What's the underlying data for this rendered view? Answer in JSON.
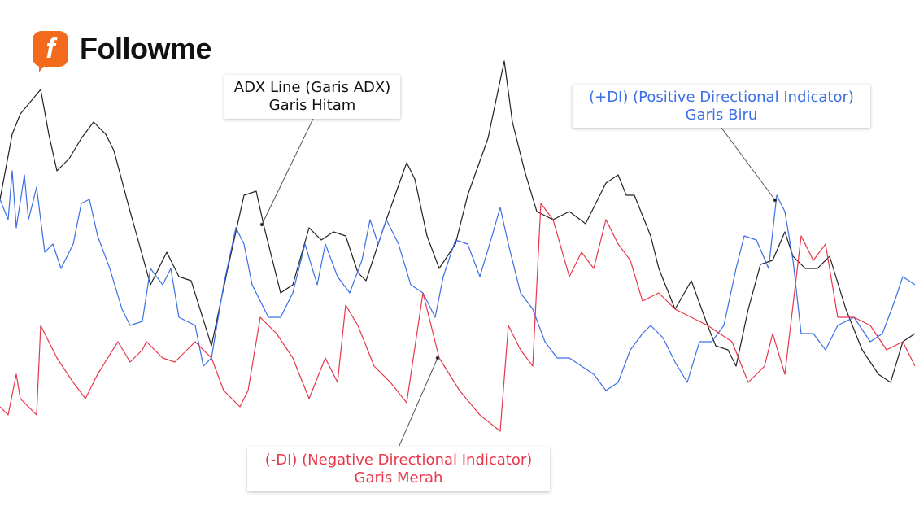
{
  "brand": {
    "name": "Followme",
    "logo_letter": "f",
    "color": "#f26b1d"
  },
  "annotations": {
    "adx": {
      "line1": "ADX Line (Garis ADX)",
      "line2": "Garis Hitam",
      "color": "#111111"
    },
    "plus_di": {
      "line1": "(+DI) (Positive Directional Indicator)",
      "line2": "Garis Biru",
      "color": "#3b6fe6"
    },
    "minus_di": {
      "line1": "(-DI) (Negative Directional Indicator)",
      "line2": "Garis Merah",
      "color": "#e8364a"
    }
  },
  "chart_data": {
    "type": "line",
    "title": "",
    "xlabel": "",
    "ylabel": "",
    "grid": false,
    "axes_visible": false,
    "series": [
      {
        "key": "adx",
        "color": "#222222",
        "x": [
          0,
          3,
          5,
          10,
          12,
          14,
          17,
          20,
          23,
          26,
          28,
          32,
          37,
          41,
          44,
          47,
          52,
          56,
          60,
          63,
          65,
          69,
          72,
          76,
          79,
          82,
          85,
          88,
          90,
          95,
          100,
          102,
          105,
          108,
          112,
          115,
          120,
          124,
          126,
          129,
          132,
          136,
          140,
          144,
          149,
          152,
          154,
          156,
          160,
          162,
          166,
          170,
          174,
          176,
          179,
          181,
          184,
          187,
          190,
          193,
          195,
          198,
          201,
          204,
          208,
          212,
          216,
          219,
          222,
          225
        ],
        "y": [
          63,
          79,
          84,
          90,
          79,
          70,
          73,
          78,
          82,
          79,
          75,
          60,
          42,
          50,
          44,
          43,
          27,
          46,
          64,
          65,
          56,
          40,
          42,
          56,
          53,
          55,
          54,
          45,
          43,
          58,
          72,
          68,
          54,
          46,
          52,
          64,
          78,
          97,
          82,
          70,
          60,
          58,
          60,
          57,
          67,
          69,
          64,
          64,
          54,
          46,
          36,
          43,
          32,
          27,
          26,
          22,
          36,
          47,
          48,
          55,
          49,
          46,
          46,
          49,
          36,
          26,
          20,
          18,
          28,
          30
        ]
      },
      {
        "key": "plus_di",
        "color": "#3b6fe6",
        "x": [
          0,
          2,
          3,
          4,
          6,
          7,
          9,
          11,
          13,
          15,
          18,
          20,
          22,
          24,
          27,
          30,
          32,
          35,
          37,
          40,
          42,
          44,
          48,
          50,
          52,
          55,
          58,
          60,
          62,
          66,
          69,
          72,
          75,
          78,
          80,
          83,
          86,
          89,
          91,
          93,
          95,
          98,
          101,
          104,
          107,
          109,
          112,
          115,
          118,
          121,
          123,
          125,
          128,
          131,
          134,
          137,
          140,
          143,
          146,
          149,
          152,
          155,
          158,
          160,
          163,
          166,
          169,
          172,
          175,
          178,
          181,
          183,
          186,
          189,
          191,
          193,
          195,
          197,
          200,
          203,
          206,
          210,
          214,
          217,
          220,
          222,
          225
        ],
        "y": [
          63,
          58,
          70,
          56,
          69,
          58,
          66,
          50,
          52,
          46,
          52,
          62,
          63,
          54,
          46,
          36,
          32,
          33,
          46,
          42,
          46,
          34,
          32,
          22,
          24,
          42,
          56,
          52,
          42,
          34,
          34,
          40,
          52,
          42,
          52,
          44,
          40,
          48,
          58,
          52,
          58,
          52,
          42,
          40,
          34,
          44,
          53,
          52,
          44,
          54,
          61,
          52,
          40,
          36,
          28,
          24,
          24,
          22,
          20,
          16,
          18,
          26,
          30,
          32,
          29,
          23,
          18,
          28,
          28,
          32,
          46,
          54,
          53,
          46,
          64,
          60,
          48,
          30,
          30,
          26,
          32,
          34,
          28,
          30,
          38,
          44,
          42
        ]
      },
      {
        "key": "minus_di",
        "color": "#e8364a",
        "x": [
          0,
          2,
          4,
          5,
          9,
          10,
          14,
          18,
          21,
          24,
          29,
          32,
          35,
          36,
          40,
          43,
          48,
          52,
          55,
          59,
          61,
          64,
          68,
          72,
          76,
          80,
          83,
          85,
          88,
          92,
          96,
          100,
          104,
          108,
          113,
          118,
          123,
          125,
          128,
          131,
          133,
          136,
          140,
          143,
          146,
          149,
          152,
          155,
          158,
          162,
          166,
          170,
          174,
          177,
          180,
          184,
          188,
          190,
          193,
          197,
          200,
          203,
          206,
          210,
          214,
          218,
          222,
          225
        ],
        "y": [
          12,
          10,
          20,
          14,
          10,
          32,
          24,
          18,
          14,
          20,
          28,
          23,
          26,
          28,
          24,
          23,
          28,
          24,
          16,
          12,
          16,
          34,
          30,
          24,
          14,
          24,
          18,
          37,
          32,
          22,
          18,
          13,
          40,
          24,
          16,
          10,
          6,
          32,
          26,
          22,
          62,
          58,
          44,
          50,
          46,
          58,
          52,
          48,
          38,
          40,
          36,
          34,
          32,
          30,
          28,
          18,
          22,
          30,
          20,
          54,
          48,
          52,
          34,
          34,
          32,
          26,
          28,
          22
        ]
      }
    ]
  }
}
